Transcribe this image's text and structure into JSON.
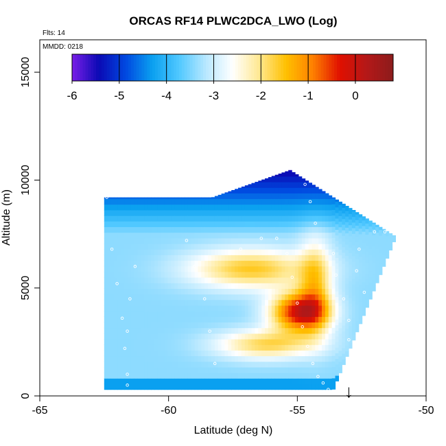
{
  "chart_data": {
    "type": "heatmap",
    "title": "ORCAS RF14 PLWC2DCA_LWO (Log)",
    "annotations": {
      "flights": "Flts: 14",
      "date": "MMDD: 0218"
    },
    "xlabel": "Latitude (deg N)",
    "ylabel": "Altitude (m)",
    "xlim": [
      -65,
      -50
    ],
    "ylim": [
      0,
      16500
    ],
    "x_ticks": [
      -65,
      -60,
      -55,
      -50
    ],
    "y_ticks": [
      0,
      5000,
      10000,
      15000
    ],
    "colorbar": {
      "range": [
        -6,
        0.8
      ],
      "ticks": [
        -6,
        -5,
        -4,
        -3,
        -2,
        -1,
        0
      ],
      "colors": [
        "#7a1ee8",
        "#0a0ab4",
        "#0048e0",
        "#0aa0f0",
        "#50c8ff",
        "#b8e8ff",
        "#ffffff",
        "#ffe890",
        "#ffc000",
        "#ff8000",
        "#e01000",
        "#b41818",
        "#8c1c1c"
      ]
    },
    "grid": false,
    "field_description": "log10 liquid water content vs latitude and altitude",
    "field_extent": {
      "lat_south": -62.5,
      "lat_north": -51.2,
      "alt_bottom": 300,
      "alt_top": 10500
    },
    "track_marker": {
      "symbol": "↓",
      "lat": -53.0
    },
    "flight_track": [
      [
        -62.4,
        9200
      ],
      [
        -62.2,
        6800
      ],
      [
        -62.0,
        5200
      ],
      [
        -61.8,
        3600
      ],
      [
        -61.7,
        2200
      ],
      [
        -61.6,
        1000
      ],
      [
        -61.6,
        500
      ],
      [
        -61.3,
        6000
      ],
      [
        -61.5,
        4500
      ],
      [
        -61.6,
        3000
      ],
      [
        -59.3,
        7200
      ],
      [
        -59.0,
        6000
      ],
      [
        -58.6,
        4500
      ],
      [
        -58.4,
        3000
      ],
      [
        -58.2,
        1500
      ],
      [
        -57.2,
        6800
      ],
      [
        -56.4,
        7300
      ],
      [
        -55.8,
        7300
      ],
      [
        -55.4,
        6600
      ],
      [
        -55.2,
        5500
      ],
      [
        -55.0,
        4300
      ],
      [
        -54.8,
        3200
      ],
      [
        -54.6,
        2300
      ],
      [
        -54.4,
        1500
      ],
      [
        -54.2,
        900
      ],
      [
        -54.0,
        600
      ],
      [
        -53.8,
        300
      ],
      [
        -53.4,
        300
      ],
      [
        -54.7,
        9800
      ],
      [
        -54.5,
        9000
      ],
      [
        -54.3,
        8000
      ],
      [
        -53.6,
        6600
      ],
      [
        -53.5,
        5600
      ],
      [
        -53.2,
        4500
      ],
      [
        -53.0,
        3500
      ],
      [
        -53.0,
        2600
      ],
      [
        -52.9,
        1700
      ],
      [
        -52.6,
        6800
      ],
      [
        -52.7,
        5800
      ],
      [
        -52.4,
        4800
      ],
      [
        -52.0,
        7600
      ],
      [
        -51.6,
        7600
      ]
    ]
  }
}
